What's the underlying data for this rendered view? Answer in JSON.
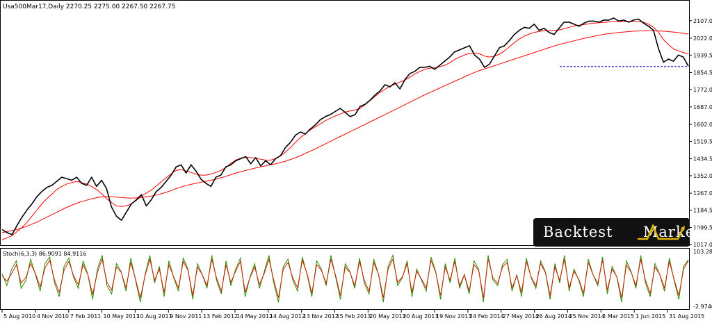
{
  "chart_data": [
    {
      "type": "line",
      "title": "Usa500Mar17,Daily  2270.25 2275.00 2267.50 2267.75",
      "y_ticks": [
        "2107.00",
        "2022.00",
        "1939.50",
        "1854.50",
        "1772.00",
        "1687.00",
        "1602.00",
        "1519.50",
        "1434.50",
        "1352.00",
        "1267.00",
        "1184.50",
        "1099.50",
        "1017.00"
      ],
      "x_ticks": [
        "5 Aug 2010",
        "4 Nov 2010",
        "7 Feb 2011",
        "10 May 2011",
        "10 Aug 2011",
        "9 Nov 2011",
        "13 Feb 2012",
        "14 May 2012",
        "14 Aug 2012",
        "13 Nov 2012",
        "15 Feb 2013",
        "20 May 2013",
        "20 Aug 2013",
        "19 Nov 2013",
        "24 Feb 2014",
        "27 May 2014",
        "26 Aug 2014",
        "25 Nov 2014",
        "2 Mar 2015",
        "1 Jun 2015",
        "31 Aug 2015"
      ],
      "ylim": [
        1017,
        2147
      ],
      "grid": false,
      "series": [
        {
          "values": [
            1090,
            1075,
            1065,
            1110,
            1150,
            1185,
            1215,
            1250,
            1275,
            1295,
            1305,
            1325,
            1345,
            1338,
            1330,
            1345,
            1315,
            1305,
            1345,
            1300,
            1330,
            1290,
            1200,
            1155,
            1135,
            1175,
            1215,
            1235,
            1260,
            1205,
            1235,
            1275,
            1295,
            1325,
            1355,
            1395,
            1405,
            1365,
            1405,
            1375,
            1335,
            1315,
            1300,
            1345,
            1355,
            1395,
            1405,
            1425,
            1435,
            1445,
            1410,
            1440,
            1400,
            1425,
            1405,
            1435,
            1450,
            1490,
            1515,
            1550,
            1565,
            1555,
            1580,
            1600,
            1625,
            1640,
            1650,
            1665,
            1680,
            1660,
            1640,
            1650,
            1690,
            1700,
            1720,
            1745,
            1765,
            1795,
            1785,
            1805,
            1775,
            1820,
            1850,
            1860,
            1880,
            1880,
            1885,
            1870,
            1890,
            1910,
            1930,
            1955,
            1965,
            1975,
            1985,
            1940,
            1920,
            1880,
            1895,
            1935,
            1975,
            1985,
            2010,
            2040,
            2060,
            2075,
            2070,
            2090,
            2060,
            2070,
            2050,
            2040,
            2070,
            2100,
            2100,
            2090,
            2080,
            2095,
            2105,
            2105,
            2100,
            2110,
            2110,
            2120,
            2105,
            2110,
            2100,
            2110,
            2115,
            2095,
            2080,
            2060,
            1970,
            1905,
            1920,
            1910,
            1940,
            1930,
            1885
          ]
        },
        {
          "values": [
            1040,
            1050,
            1060,
            1080,
            1100,
            1125,
            1155,
            1185,
            1215,
            1240,
            1262,
            1285,
            1300,
            1312,
            1318,
            1325,
            1318,
            1312,
            1300,
            1285,
            1265,
            1240,
            1222,
            1205,
            1202,
            1205,
            1215,
            1232,
            1252,
            1268,
            1282,
            1302,
            1322,
            1342,
            1362,
            1378,
            1382,
            1375,
            1368,
            1360,
            1355,
            1355,
            1360,
            1368,
            1378,
            1392,
            1412,
            1428,
            1438,
            1442,
            1440,
            1438,
            1432,
            1428,
            1428,
            1435,
            1448,
            1468,
            1490,
            1515,
            1538,
            1558,
            1575,
            1590,
            1605,
            1620,
            1632,
            1643,
            1652,
            1662,
            1668,
            1672,
            1680,
            1698,
            1718,
            1738,
            1758,
            1773,
            1788,
            1798,
            1808,
            1818,
            1832,
            1848,
            1860,
            1870,
            1876,
            1878,
            1882,
            1890,
            1902,
            1918,
            1930,
            1940,
            1948,
            1950,
            1946,
            1935,
            1930,
            1934,
            1944,
            1960,
            1980,
            2000,
            2018,
            2032,
            2042,
            2050,
            2055,
            2058,
            2058,
            2060,
            2062,
            2068,
            2075,
            2081,
            2085,
            2088,
            2092,
            2095,
            2097,
            2099,
            2101,
            2103,
            2103,
            2103,
            2103,
            2104,
            2104,
            2100,
            2090,
            2075,
            2050,
            2015,
            1990,
            1970,
            1960,
            1952,
            1945
          ]
        },
        {
          "values": [
            1075,
            1080,
            1085,
            1090,
            1098,
            1106,
            1116,
            1126,
            1138,
            1150,
            1162,
            1174,
            1186,
            1198,
            1208,
            1218,
            1226,
            1233,
            1240,
            1245,
            1249,
            1251,
            1250,
            1248,
            1246,
            1244,
            1243,
            1244,
            1246,
            1249,
            1253,
            1258,
            1264,
            1271,
            1280,
            1289,
            1297,
            1304,
            1310,
            1315,
            1320,
            1325,
            1330,
            1335,
            1342,
            1349,
            1357,
            1365,
            1372,
            1378,
            1384,
            1390,
            1395,
            1400,
            1405,
            1410,
            1416,
            1423,
            1431,
            1440,
            1450,
            1461,
            1472,
            1483,
            1495,
            1507,
            1519,
            1531,
            1543,
            1555,
            1567,
            1578,
            1590,
            1602,
            1614,
            1626,
            1638,
            1650,
            1662,
            1674,
            1686,
            1698,
            1710,
            1722,
            1734,
            1746,
            1757,
            1768,
            1779,
            1790,
            1801,
            1812,
            1823,
            1834,
            1845,
            1855,
            1864,
            1872,
            1880,
            1888,
            1896,
            1904,
            1912,
            1920,
            1928,
            1936,
            1944,
            1952,
            1960,
            1968,
            1976,
            1984,
            1991,
            1997,
            2003,
            2009,
            2015,
            2021,
            2026,
            2031,
            2036,
            2040,
            2044,
            2047,
            2050,
            2052,
            2054,
            2056,
            2057,
            2058,
            2058,
            2058,
            2057,
            2056,
            2054,
            2052,
            2049,
            2046,
            2042
          ]
        }
      ],
      "hline": {
        "value": 1884
      }
    },
    {
      "type": "line",
      "title": "Stoch(6,3,3) 86.9091 84.9116",
      "y_ticks": [
        "103.2815",
        "-2.9746"
      ],
      "ylim": [
        0,
        103.3
      ],
      "series": [
        {
          "values": [
            62,
            40,
            70,
            85,
            35,
            50,
            88,
            60,
            30,
            80,
            92,
            45,
            20,
            75,
            90,
            55,
            35,
            85,
            60,
            15,
            70,
            95,
            40,
            25,
            80,
            65,
            30,
            90,
            50,
            10,
            60,
            95,
            45,
            75,
            20,
            85,
            55,
            30,
            90,
            70,
            15,
            80,
            60,
            35,
            95,
            50,
            25,
            85,
            40,
            70,
            90,
            20,
            55,
            80,
            35,
            65,
            95,
            45,
            10,
            75,
            88,
            50,
            30,
            92,
            60,
            20,
            85,
            70,
            40,
            95,
            55,
            15,
            80,
            65,
            35,
            90,
            45,
            25,
            88,
            60,
            10,
            75,
            95,
            40,
            55,
            85,
            20,
            70,
            50,
            30,
            92,
            65,
            15,
            80,
            45,
            90,
            35,
            60,
            25,
            85,
            70,
            10,
            95,
            50,
            40,
            78,
            88,
            30,
            60,
            20,
            90,
            55,
            35,
            85,
            65,
            15,
            80,
            45,
            95,
            30,
            70,
            50,
            20,
            88,
            60,
            40,
            92,
            25,
            75,
            55,
            10,
            85,
            65,
            35,
            95,
            45,
            20,
            80,
            60,
            30,
            90,
            50,
            15,
            75,
            87
          ]
        },
        {
          "values": [
            58,
            48,
            62,
            78,
            45,
            55,
            80,
            62,
            38,
            72,
            86,
            50,
            28,
            68,
            84,
            58,
            42,
            78,
            60,
            24,
            64,
            88,
            46,
            32,
            74,
            64,
            36,
            82,
            52,
            18,
            58,
            88,
            50,
            70,
            28,
            78,
            56,
            36,
            84,
            68,
            22,
            74,
            60,
            40,
            88,
            54,
            30,
            78,
            46,
            66,
            84,
            28,
            54,
            74,
            42,
            62,
            88,
            50,
            18,
            70,
            82,
            54,
            36,
            86,
            62,
            26,
            78,
            68,
            44,
            88,
            58,
            22,
            74,
            64,
            40,
            84,
            50,
            30,
            82,
            60,
            18,
            70,
            88,
            46,
            56,
            80,
            28,
            66,
            52,
            36,
            86,
            64,
            22,
            74,
            50,
            84,
            40,
            60,
            30,
            78,
            68,
            18,
            88,
            54,
            44,
            74,
            82,
            36,
            58,
            28,
            84,
            56,
            40,
            80,
            64,
            22,
            74,
            50,
            88,
            36,
            66,
            52,
            26,
            82,
            60,
            44,
            86,
            32,
            70,
            56,
            18,
            78,
            64,
            40,
            88,
            50,
            26,
            74,
            60,
            36,
            84,
            52,
            22,
            70,
            85
          ]
        }
      ]
    }
  ],
  "brand": {
    "word1": "Backtest",
    "word2": "Market"
  },
  "colors": {
    "price": "#000000",
    "ma": "#ff0000",
    "stoch_main": "#2a8a00",
    "stoch_signal": "#d02000",
    "projection": "#0000cc"
  }
}
